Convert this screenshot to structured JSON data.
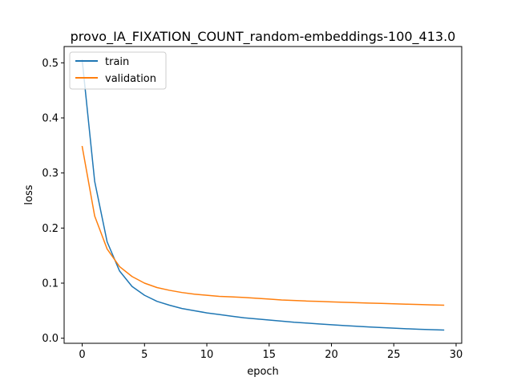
{
  "chart_data": {
    "type": "line",
    "title": "provo_IA_FIXATION_COUNT_random-embeddings-100_413.0",
    "xlabel": "epoch",
    "ylabel": "loss",
    "xlim": [
      -1.45,
      30.45
    ],
    "ylim": [
      -0.0092,
      0.5296
    ],
    "xticks": [
      "0",
      "5",
      "10",
      "15",
      "20",
      "25",
      "30"
    ],
    "yticks": [
      "0.0",
      "0.1",
      "0.2",
      "0.3",
      "0.4",
      "0.5"
    ],
    "grid": false,
    "legend_position": "upper left",
    "x": [
      0,
      1,
      2,
      3,
      4,
      5,
      6,
      7,
      8,
      9,
      10,
      11,
      12,
      13,
      14,
      15,
      16,
      17,
      18,
      19,
      20,
      21,
      22,
      23,
      24,
      25,
      26,
      27,
      28,
      29
    ],
    "series": [
      {
        "name": "train",
        "color": "#1f77b4",
        "values": [
          0.505,
          0.285,
          0.175,
          0.122,
          0.094,
          0.078,
          0.067,
          0.06,
          0.054,
          0.05,
          0.046,
          0.043,
          0.04,
          0.037,
          0.035,
          0.033,
          0.031,
          0.029,
          0.0275,
          0.026,
          0.0245,
          0.023,
          0.0218,
          0.0205,
          0.0193,
          0.0182,
          0.0172,
          0.0163,
          0.0156,
          0.0149
        ]
      },
      {
        "name": "validation",
        "color": "#ff7f0e",
        "values": [
          0.348,
          0.222,
          0.162,
          0.13,
          0.112,
          0.1,
          0.092,
          0.087,
          0.083,
          0.08,
          0.078,
          0.076,
          0.075,
          0.074,
          0.0725,
          0.071,
          0.0695,
          0.0685,
          0.0675,
          0.0668,
          0.066,
          0.0652,
          0.0645,
          0.0638,
          0.0632,
          0.0625,
          0.0618,
          0.0612,
          0.0606,
          0.06
        ]
      }
    ]
  }
}
